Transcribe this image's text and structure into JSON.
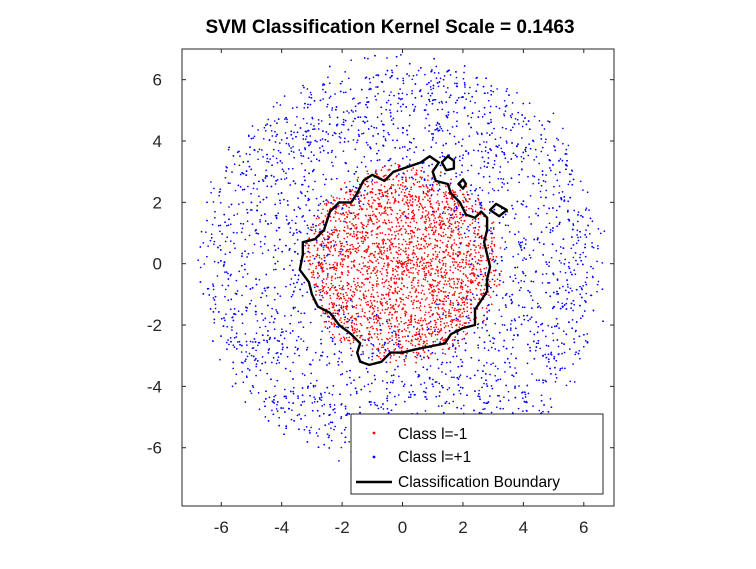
{
  "chart_data": {
    "type": "scatter",
    "title": "SVM Classification Kernel Scale = 0.1463",
    "xlabel": "",
    "ylabel": "",
    "xlim": [
      -7.3,
      7.0
    ],
    "ylim": [
      -7.9,
      7.0
    ],
    "xticks": [
      -6,
      -4,
      -2,
      0,
      2,
      4,
      6
    ],
    "yticks": [
      6,
      4,
      2,
      0,
      -2,
      -4,
      -6
    ],
    "xtick_labels": [
      "-6",
      "-4",
      "-2",
      "0",
      "2",
      "4",
      "6"
    ],
    "ytick_labels": [
      "6",
      "4",
      "2",
      "0",
      "-2",
      "-4",
      "-6"
    ],
    "grid": false,
    "legend_position": "bottom-right",
    "series": [
      {
        "name": "Class l=-1",
        "kind": "points",
        "color": "#ff0000",
        "distribution": {
          "center": [
            0,
            0
          ],
          "radius_max": 3.3,
          "count": 2600
        }
      },
      {
        "name": "Class l=+1",
        "kind": "points",
        "color": "#0000ff",
        "distribution": {
          "center": [
            0,
            0
          ],
          "radius_min": 1.4,
          "radius_max": 7.0,
          "count": 3600
        }
      },
      {
        "name": "Classification Boundary",
        "kind": "line",
        "color": "#000000",
        "contours": [
          [
            [
              -0.6,
              2.7
            ],
            [
              -0.3,
              3.0
            ],
            [
              0.3,
              3.2
            ],
            [
              0.6,
              3.3
            ],
            [
              0.9,
              3.5
            ],
            [
              1.2,
              3.3
            ],
            [
              1.0,
              3.0
            ],
            [
              1.1,
              2.7
            ],
            [
              1.5,
              2.6
            ],
            [
              1.6,
              2.3
            ],
            [
              1.9,
              2.0
            ],
            [
              2.1,
              1.6
            ],
            [
              2.4,
              1.5
            ],
            [
              2.6,
              1.7
            ],
            [
              2.8,
              1.5
            ],
            [
              2.8,
              1.1
            ],
            [
              2.7,
              0.7
            ],
            [
              2.8,
              0.3
            ],
            [
              2.9,
              -0.1
            ],
            [
              2.8,
              -0.5
            ],
            [
              2.8,
              -0.9
            ],
            [
              2.6,
              -1.2
            ],
            [
              2.4,
              -1.5
            ],
            [
              2.4,
              -2.0
            ],
            [
              2.0,
              -2.1
            ],
            [
              1.6,
              -2.3
            ],
            [
              1.4,
              -2.6
            ],
            [
              0.9,
              -2.7
            ],
            [
              0.4,
              -2.8
            ],
            [
              0.0,
              -2.9
            ],
            [
              -0.4,
              -2.9
            ],
            [
              -0.7,
              -3.2
            ],
            [
              -1.1,
              -3.3
            ],
            [
              -1.4,
              -3.2
            ],
            [
              -1.5,
              -2.9
            ],
            [
              -1.4,
              -2.6
            ],
            [
              -1.7,
              -2.3
            ],
            [
              -2.1,
              -2.0
            ],
            [
              -2.4,
              -1.6
            ],
            [
              -2.8,
              -1.4
            ],
            [
              -3.0,
              -1.0
            ],
            [
              -3.1,
              -0.6
            ],
            [
              -3.4,
              -0.2
            ],
            [
              -3.3,
              0.3
            ],
            [
              -3.3,
              0.7
            ],
            [
              -2.9,
              0.8
            ],
            [
              -2.6,
              1.1
            ],
            [
              -2.4,
              1.7
            ],
            [
              -2.1,
              2.0
            ],
            [
              -1.7,
              2.0
            ],
            [
              -1.5,
              2.3
            ],
            [
              -1.3,
              2.7
            ],
            [
              -1.0,
              2.9
            ],
            [
              -0.6,
              2.7
            ]
          ],
          [
            [
              1.5,
              3.5
            ],
            [
              1.7,
              3.35
            ],
            [
              1.7,
              3.1
            ],
            [
              1.45,
              3.05
            ],
            [
              1.3,
              3.3
            ],
            [
              1.5,
              3.5
            ]
          ],
          [
            [
              2.0,
              2.75
            ],
            [
              2.1,
              2.6
            ],
            [
              2.0,
              2.45
            ],
            [
              1.85,
              2.6
            ],
            [
              2.0,
              2.75
            ]
          ],
          [
            [
              3.1,
              1.95
            ],
            [
              3.45,
              1.75
            ],
            [
              3.2,
              1.55
            ],
            [
              2.9,
              1.75
            ],
            [
              3.1,
              1.95
            ]
          ]
        ]
      }
    ]
  }
}
